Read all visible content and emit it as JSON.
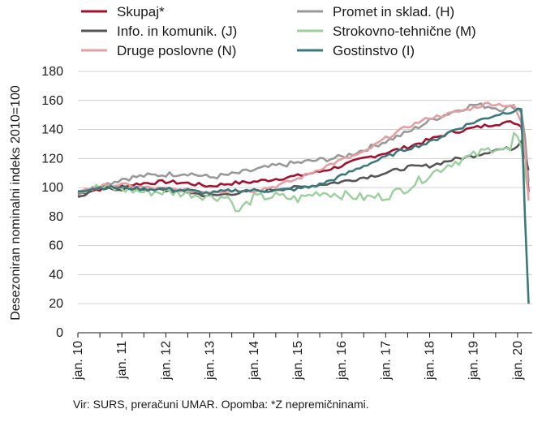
{
  "chart_data": {
    "type": "line",
    "ylabel": "Desezoniran nominalni indeks 2010=100",
    "ylim": [
      0,
      180
    ],
    "yticks": [
      0,
      20,
      40,
      60,
      80,
      100,
      120,
      140,
      160,
      180
    ],
    "xlim": [
      0,
      124
    ],
    "xticks": [
      {
        "x": 0,
        "label": "jan. 10"
      },
      {
        "x": 12,
        "label": "jan. 11"
      },
      {
        "x": 24,
        "label": "jan. 12"
      },
      {
        "x": 36,
        "label": "jan. 13"
      },
      {
        "x": 48,
        "label": "jan. 14"
      },
      {
        "x": 60,
        "label": "jan. 15"
      },
      {
        "x": 72,
        "label": "jan. 16"
      },
      {
        "x": 84,
        "label": "jan. 17"
      },
      {
        "x": 96,
        "label": "jan. 18"
      },
      {
        "x": 108,
        "label": "jan. 19"
      },
      {
        "x": 120,
        "label": "jan. 20"
      }
    ],
    "grid": "horizontal",
    "legend_position": "top",
    "source_note": "Vir: SURS, preračuni UMAR. Opomba: *Z nepremičninami.",
    "series": [
      {
        "name": "Skupaj*",
        "color": "#a3112e",
        "width": 2.6,
        "x": [
          0,
          6,
          12,
          18,
          24,
          30,
          36,
          42,
          48,
          54,
          60,
          66,
          72,
          78,
          84,
          90,
          96,
          102,
          108,
          114,
          119,
          121,
          122,
          123
        ],
        "y": [
          96,
          99,
          101,
          103,
          104,
          103,
          101,
          103,
          104,
          106,
          108,
          111,
          115,
          120,
          124,
          128,
          133,
          138,
          141,
          144,
          145,
          142,
          125,
          97
        ]
      },
      {
        "name": "Promet in sklad. (H)",
        "color": "#999999",
        "width": 2.6,
        "x": [
          0,
          6,
          12,
          18,
          24,
          30,
          36,
          42,
          48,
          54,
          60,
          66,
          72,
          78,
          84,
          90,
          96,
          102,
          108,
          112,
          116,
          119,
          121,
          122,
          123
        ],
        "y": [
          96,
          101,
          106,
          108,
          109,
          110,
          107,
          109,
          112,
          115,
          117,
          119,
          121,
          126,
          132,
          138,
          146,
          152,
          157,
          156,
          154,
          156,
          152,
          135,
          104
        ]
      },
      {
        "name": "Info. in komunik. (J)",
        "color": "#555555",
        "width": 2.6,
        "x": [
          0,
          6,
          12,
          18,
          24,
          30,
          36,
          42,
          48,
          54,
          60,
          66,
          72,
          78,
          84,
          90,
          96,
          102,
          108,
          114,
          119,
          121,
          122,
          123
        ],
        "y": [
          93,
          100,
          99,
          99,
          98,
          97,
          94,
          96,
          97,
          99,
          100,
          102,
          104,
          107,
          110,
          114,
          115,
          119,
          122,
          126,
          127,
          132,
          121,
          112
        ]
      },
      {
        "name": "Strokovno-tehnične (M)",
        "color": "#9bcf9b",
        "width": 2.4,
        "x": [
          0,
          6,
          12,
          18,
          24,
          30,
          36,
          42,
          43,
          48,
          54,
          60,
          66,
          72,
          78,
          84,
          90,
          96,
          102,
          108,
          114,
          118,
          119,
          121,
          122,
          123
        ],
        "y": [
          99,
          100,
          99,
          97,
          97,
          96,
          94,
          93,
          82,
          93,
          94,
          92,
          97,
          95,
          93,
          94,
          100,
          109,
          117,
          122,
          128,
          125,
          136,
          128,
          110,
          95
        ]
      },
      {
        "name": "Druge poslovne (N)",
        "color": "#e3a0a2",
        "width": 2.6,
        "x": [
          0,
          6,
          12,
          18,
          24,
          30,
          36,
          42,
          48,
          54,
          60,
          66,
          72,
          78,
          84,
          90,
          96,
          102,
          108,
          112,
          116,
          119,
          121,
          122,
          123
        ],
        "y": [
          97,
          101,
          102,
          100,
          99,
          98,
          97,
          98,
          98,
          101,
          106,
          113,
          119,
          124,
          134,
          142,
          148,
          151,
          155,
          158,
          157,
          156,
          145,
          125,
          91
        ]
      },
      {
        "name": "Gostinstvo (I)",
        "color": "#3a7a7c",
        "width": 2.6,
        "x": [
          0,
          6,
          12,
          18,
          24,
          30,
          36,
          42,
          48,
          54,
          60,
          66,
          72,
          78,
          84,
          90,
          96,
          102,
          108,
          114,
          119,
          120,
          121,
          122,
          123
        ],
        "y": [
          98,
          100,
          100,
          99,
          99,
          98,
          96,
          98,
          98,
          98,
          99,
          102,
          108,
          115,
          121,
          127,
          131,
          139,
          145,
          150,
          153,
          155,
          154,
          80,
          20
        ]
      }
    ]
  }
}
